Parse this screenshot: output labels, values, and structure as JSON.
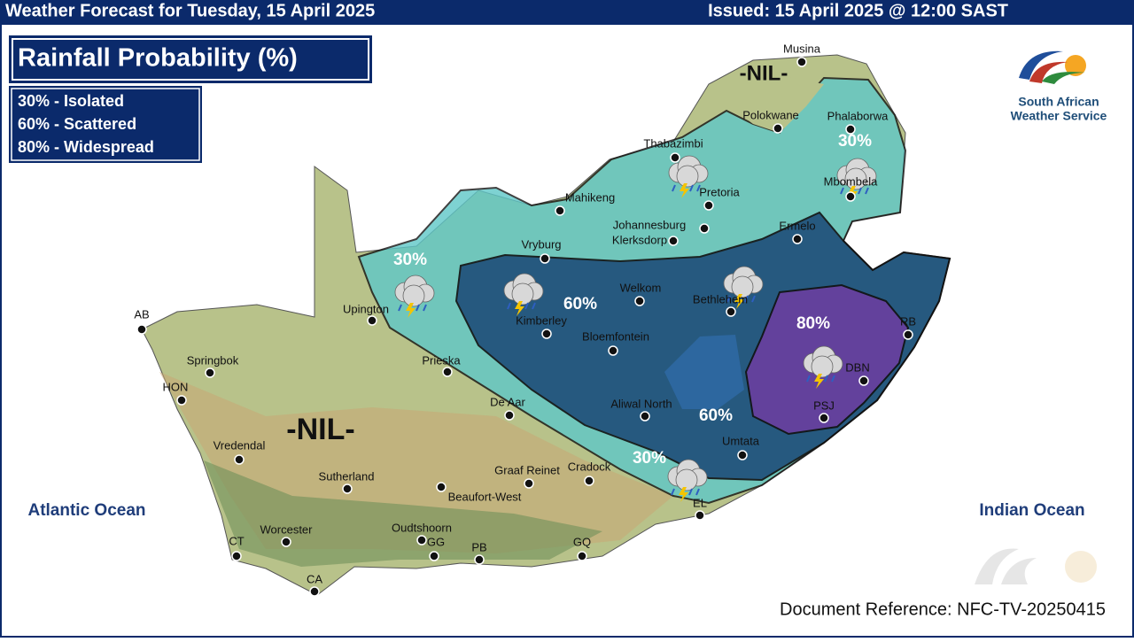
{
  "header": {
    "title": "Weather Forecast for Tuesday, 15 April 2025",
    "issued": "Issued: 15 April 2025 @ 12:00 SAST"
  },
  "panel": {
    "title": "Rainfall Probability (%)",
    "legend": [
      "30% - Isolated",
      "60% - Scattered",
      "80% - Widespread"
    ]
  },
  "logo": {
    "lines": [
      "South African",
      "Weather Service"
    ]
  },
  "zones": [
    "30%",
    "30%",
    "30%",
    "60%",
    "60%",
    "80%",
    "-NIL-",
    "-NIL-"
  ],
  "cities": [
    "Musina",
    "Polokwane",
    "Phalaborwa",
    "Thabazimbi",
    "Pretoria",
    "Mbombela",
    "Mahikeng",
    "Johannesburg",
    "Klerksdorp",
    "Vryburg",
    "Ermelo",
    "Welkom",
    "Bethlehem",
    "Upington",
    "Kimberley",
    "Bloemfontein",
    "RB",
    "Prieska",
    "DBN",
    "Aliwal North",
    "PSJ",
    "Umtata",
    "De Aar",
    "AB",
    "Springbok",
    "HON",
    "Vredendal",
    "Sutherland",
    "Graaf Reinet",
    "Cradock",
    "Beaufort-West",
    "EL",
    "Worcester",
    "Oudtshoorn",
    "GG",
    "PB",
    "GQ",
    "CT",
    "CA"
  ],
  "oceans": [
    "Atlantic Ocean",
    "Indian Ocean"
  ],
  "footer": "Document Reference: NFC-TV-20250415"
}
